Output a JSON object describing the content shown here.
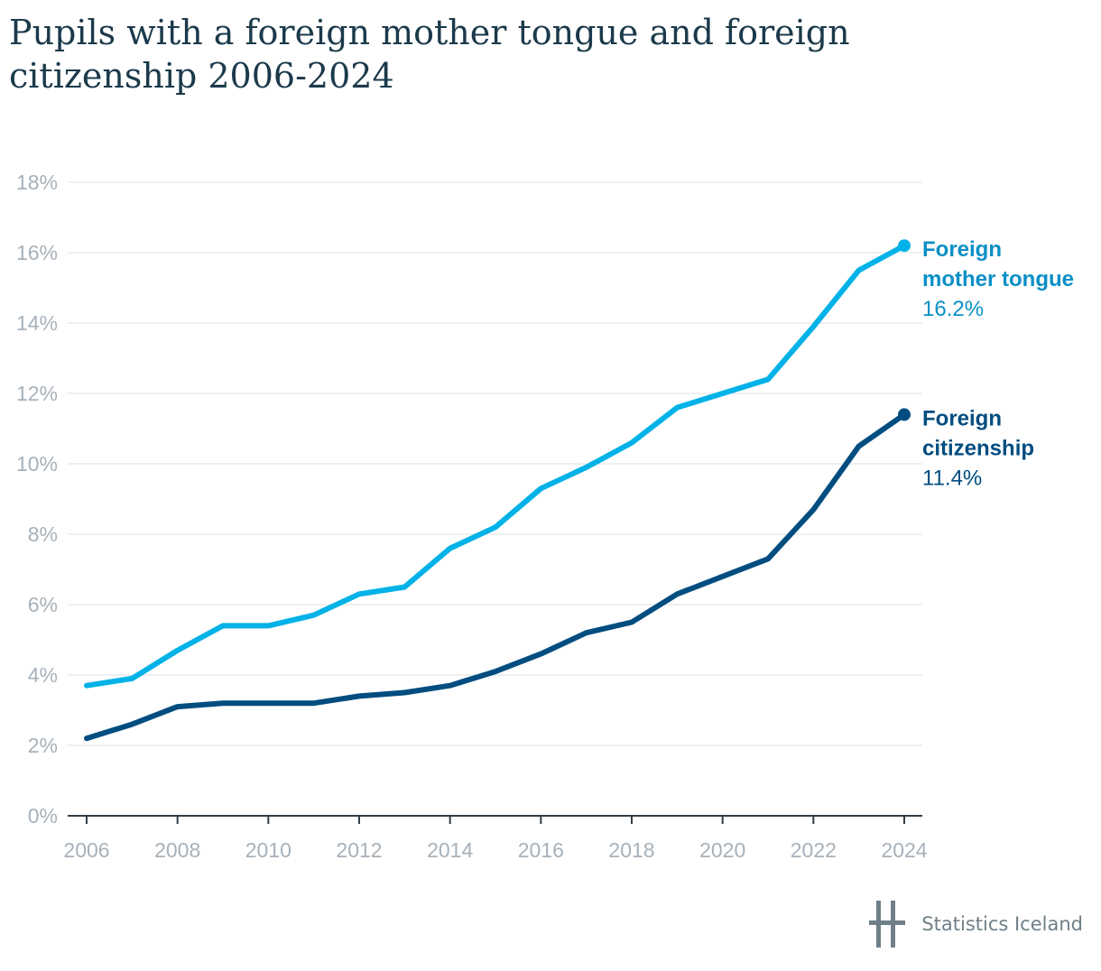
{
  "title": "Pupils with a foreign mother tongue and foreign citizenship 2006-2024",
  "source_credit": "Statistics Iceland",
  "chart_data": {
    "type": "line",
    "title": "Pupils with a foreign mother tongue and foreign citizenship 2006-2024",
    "xlabel": "",
    "ylabel": "",
    "x": [
      2006,
      2007,
      2008,
      2009,
      2010,
      2011,
      2012,
      2013,
      2014,
      2015,
      2016,
      2017,
      2018,
      2019,
      2020,
      2021,
      2022,
      2023,
      2024
    ],
    "xlim": [
      2006,
      2024
    ],
    "ylim": [
      0,
      18
    ],
    "x_ticks": [
      "2006",
      "2008",
      "2010",
      "2012",
      "2014",
      "2016",
      "2018",
      "2020",
      "2022",
      "2024"
    ],
    "y_ticks": [
      "0%",
      "2%",
      "4%",
      "6%",
      "8%",
      "10%",
      "12%",
      "14%",
      "16%",
      "18%"
    ],
    "grid": true,
    "legend": "direct labels at line ends (right)",
    "series": [
      {
        "name_lines": [
          "Foreign",
          "mother tongue"
        ],
        "end_label": "16.2%",
        "color": "#00b2e7",
        "label_color": "#0a8fc6",
        "values": [
          3.7,
          3.9,
          4.7,
          5.4,
          5.4,
          5.7,
          6.3,
          6.5,
          7.6,
          8.2,
          9.3,
          9.9,
          10.6,
          11.6,
          12.0,
          12.4,
          13.9,
          15.5,
          16.2
        ]
      },
      {
        "name_lines": [
          "Foreign",
          "citizenship"
        ],
        "end_label": "11.4%",
        "color": "#014d80",
        "label_color": "#014d80",
        "values": [
          2.2,
          2.6,
          3.1,
          3.2,
          3.2,
          3.2,
          3.4,
          3.5,
          3.7,
          4.1,
          4.6,
          5.2,
          5.5,
          6.3,
          6.8,
          7.3,
          8.7,
          10.5,
          11.4
        ]
      }
    ]
  }
}
